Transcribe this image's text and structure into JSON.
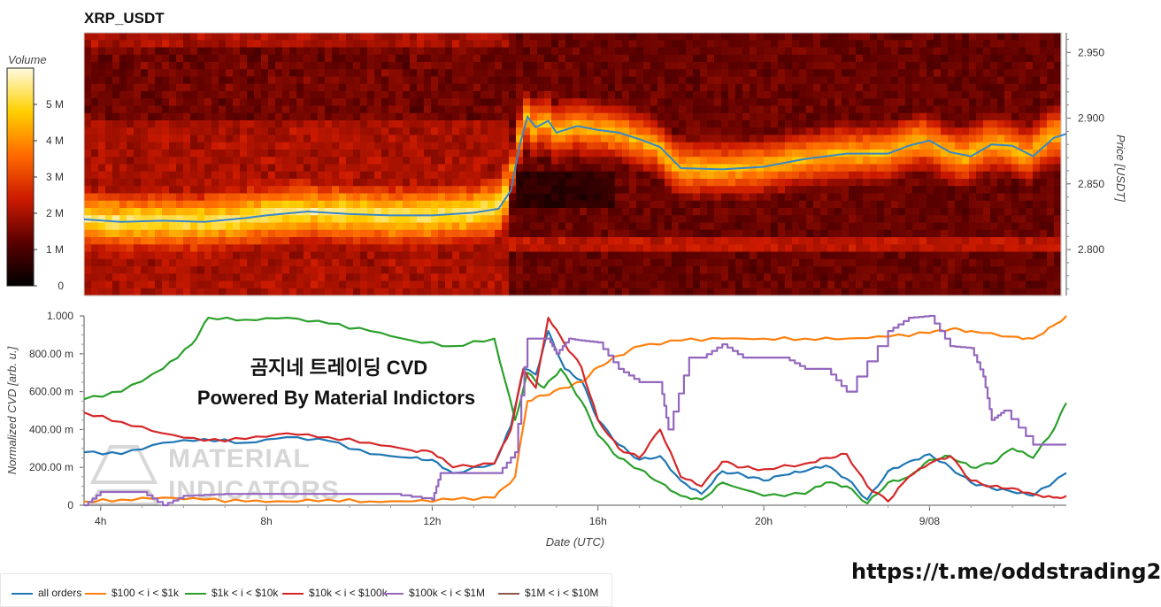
{
  "chart_data": [
    {
      "type": "heatmap",
      "title": "XRP_USDT",
      "ylabel": "Price [USDT]",
      "ylim": [
        2.765,
        2.965
      ],
      "y_ticks": [
        2.8,
        2.85,
        2.9,
        2.95
      ],
      "y_tick_labels": [
        "2.800",
        "2.850",
        "2.900",
        "2.950"
      ],
      "colorbar": {
        "title": "Volume",
        "range": [
          0,
          6000000
        ],
        "ticks": [
          0,
          1000000,
          2000000,
          3000000,
          4000000,
          5000000
        ],
        "tick_labels": [
          "0",
          "1 M",
          "2 M",
          "3 M",
          "4 M",
          "5 M"
        ]
      },
      "price_line": {
        "color": "#3a87c6",
        "x": [
          3.6,
          4.5,
          5.5,
          6.5,
          7.5,
          8.0,
          9.0,
          10.0,
          11.0,
          12.0,
          13.0,
          13.6,
          13.9,
          14.1,
          14.3,
          14.5,
          14.8,
          15.0,
          15.5,
          16.0,
          16.5,
          17.0,
          17.5,
          18.0,
          19.0,
          20.0,
          21.0,
          22.0,
          23.0,
          23.5,
          24.0,
          24.5,
          25.0,
          25.5,
          26.0,
          26.5,
          27.0,
          27.3
        ],
        "y": [
          2.823,
          2.821,
          2.822,
          2.821,
          2.824,
          2.826,
          2.829,
          2.827,
          2.826,
          2.826,
          2.828,
          2.831,
          2.845,
          2.878,
          2.901,
          2.893,
          2.898,
          2.889,
          2.894,
          2.891,
          2.889,
          2.884,
          2.878,
          2.862,
          2.861,
          2.863,
          2.869,
          2.873,
          2.873,
          2.879,
          2.883,
          2.874,
          2.871,
          2.88,
          2.879,
          2.871,
          2.885,
          2.888
        ]
      }
    },
    {
      "type": "line",
      "xlabel": "Date (UTC)",
      "ylabel": "Normalized CVD [arb. u.]",
      "xlim": [
        3.6,
        27.3
      ],
      "ylim": [
        0,
        1
      ],
      "x_ticks": [
        4,
        8,
        12,
        16,
        20,
        24
      ],
      "x_tick_labels": [
        "4h",
        "8h",
        "12h",
        "16h",
        "20h",
        "9/08"
      ],
      "y_ticks": [
        0,
        0.2,
        0.4,
        0.6,
        0.8,
        1.0
      ],
      "y_tick_labels": [
        "0",
        "200.00 m",
        "400.00 m",
        "600.00 m",
        "800.00 m",
        "1.000"
      ],
      "legend_position": "bottom-left",
      "series": [
        {
          "name": "all orders",
          "color": "#1f77b4",
          "x": [
            3.6,
            4.5,
            5.5,
            6.5,
            7.5,
            8.5,
            9.5,
            10.5,
            11.5,
            12.0,
            12.5,
            13.5,
            13.9,
            14.2,
            14.5,
            14.8,
            15.2,
            15.6,
            16.0,
            16.5,
            17.0,
            17.5,
            18.0,
            18.5,
            19.0,
            19.5,
            20.0,
            20.5,
            21.0,
            21.5,
            22.0,
            22.5,
            23.0,
            23.5,
            24.0,
            24.5,
            25.0,
            25.5,
            26.0,
            26.5,
            27.3
          ],
          "y": [
            0.28,
            0.27,
            0.33,
            0.35,
            0.33,
            0.36,
            0.34,
            0.27,
            0.25,
            0.24,
            0.17,
            0.22,
            0.42,
            0.72,
            0.69,
            0.92,
            0.72,
            0.66,
            0.45,
            0.32,
            0.24,
            0.26,
            0.13,
            0.06,
            0.18,
            0.16,
            0.13,
            0.16,
            0.18,
            0.21,
            0.14,
            0.03,
            0.18,
            0.23,
            0.27,
            0.2,
            0.12,
            0.09,
            0.07,
            0.05,
            0.17
          ]
        },
        {
          "name": "$100 < i < $1k",
          "color": "#ff7f0e",
          "x": [
            3.6,
            4.5,
            5.5,
            6.5,
            7.5,
            8.5,
            9.5,
            10.5,
            11.5,
            12.5,
            13.5,
            14.0,
            14.3,
            14.7,
            15.2,
            15.6,
            16.0,
            16.5,
            17.0,
            18.0,
            19.0,
            20.0,
            21.0,
            22.0,
            23.0,
            24.0,
            24.5,
            25.0,
            26.0,
            26.5,
            27.0,
            27.3
          ],
          "y": [
            0.02,
            0.03,
            0.04,
            0.03,
            0.02,
            0.02,
            0.03,
            0.02,
            0.02,
            0.03,
            0.04,
            0.15,
            0.55,
            0.58,
            0.62,
            0.65,
            0.73,
            0.79,
            0.84,
            0.87,
            0.88,
            0.88,
            0.88,
            0.88,
            0.89,
            0.91,
            0.93,
            0.92,
            0.89,
            0.88,
            0.95,
            1.0
          ]
        },
        {
          "name": "$1k < i < $10k",
          "color": "#2ca02c",
          "x": [
            3.6,
            4.5,
            5.5,
            6.2,
            6.6,
            7.5,
            8.5,
            9.5,
            10.5,
            11.5,
            12.5,
            13.5,
            14.0,
            14.3,
            14.7,
            15.1,
            15.6,
            16.0,
            16.5,
            17.0,
            17.5,
            18.0,
            18.5,
            19.0,
            20.0,
            21.0,
            21.5,
            22.0,
            22.5,
            23.0,
            23.5,
            24.0,
            24.5,
            25.0,
            25.5,
            26.0,
            26.5,
            27.0,
            27.3
          ],
          "y": [
            0.56,
            0.6,
            0.72,
            0.85,
            0.99,
            0.98,
            0.99,
            0.96,
            0.92,
            0.87,
            0.84,
            0.88,
            0.45,
            0.7,
            0.62,
            0.72,
            0.55,
            0.37,
            0.25,
            0.19,
            0.12,
            0.05,
            0.03,
            0.12,
            0.05,
            0.06,
            0.12,
            0.1,
            0.01,
            0.12,
            0.15,
            0.24,
            0.26,
            0.2,
            0.22,
            0.3,
            0.25,
            0.4,
            0.54
          ]
        },
        {
          "name": "$10k < i < $100k",
          "color": "#d62728",
          "x": [
            3.6,
            4.5,
            5.5,
            6.5,
            7.5,
            8.5,
            9.5,
            10.5,
            11.5,
            12.0,
            12.5,
            13.5,
            13.9,
            14.2,
            14.5,
            14.8,
            15.2,
            15.6,
            16.0,
            16.5,
            17.0,
            17.5,
            18.0,
            18.5,
            19.0,
            19.5,
            20.0,
            21.0,
            21.5,
            22.0,
            22.5,
            23.0,
            23.5,
            24.0,
            24.5,
            25.0,
            25.5,
            26.0,
            26.5,
            27.0,
            27.3
          ],
          "y": [
            0.49,
            0.44,
            0.38,
            0.34,
            0.35,
            0.38,
            0.36,
            0.33,
            0.29,
            0.28,
            0.2,
            0.22,
            0.4,
            0.72,
            0.62,
            0.99,
            0.85,
            0.73,
            0.45,
            0.3,
            0.25,
            0.4,
            0.15,
            0.1,
            0.23,
            0.2,
            0.19,
            0.22,
            0.25,
            0.27,
            0.1,
            0.02,
            0.15,
            0.22,
            0.26,
            0.13,
            0.1,
            0.09,
            0.06,
            0.04,
            0.05
          ]
        },
        {
          "name": "$100k < i < $1M",
          "color": "#9467bd",
          "x": [
            3.6,
            4.0,
            5.0,
            5.5,
            6.0,
            7.0,
            8.0,
            9.0,
            10.0,
            11.0,
            12.0,
            12.2,
            13.0,
            13.6,
            14.0,
            14.3,
            14.8,
            15.0,
            15.3,
            15.6,
            16.0,
            16.5,
            17.0,
            17.5,
            17.7,
            18.2,
            18.5,
            19.0,
            19.5,
            20.5,
            21.0,
            21.5,
            22.0,
            23.0,
            23.5,
            24.0,
            24.5,
            25.0,
            25.3,
            25.5,
            25.8,
            26.5,
            27.0,
            27.3
          ],
          "y": [
            0.0,
            0.07,
            0.07,
            0.0,
            0.05,
            0.06,
            0.06,
            0.06,
            0.06,
            0.06,
            0.03,
            0.17,
            0.17,
            0.17,
            0.28,
            0.88,
            0.88,
            0.8,
            0.88,
            0.87,
            0.86,
            0.72,
            0.65,
            0.65,
            0.4,
            0.78,
            0.78,
            0.85,
            0.78,
            0.78,
            0.72,
            0.72,
            0.6,
            0.92,
            0.99,
            1.0,
            0.84,
            0.83,
            0.68,
            0.45,
            0.5,
            0.32,
            0.32,
            0.32
          ]
        },
        {
          "name": "$1M < i < $10M",
          "color": "#8c564b",
          "x": [],
          "y": []
        }
      ]
    }
  ],
  "overlay": {
    "line1": "곰지네 트레이딩 CVD",
    "line2": "Powered By Material Indictors"
  },
  "watermark": {
    "line1": "MATERIAL",
    "line2": "INDICATORS"
  },
  "footer_link": "https://t.me/oddstrading2"
}
